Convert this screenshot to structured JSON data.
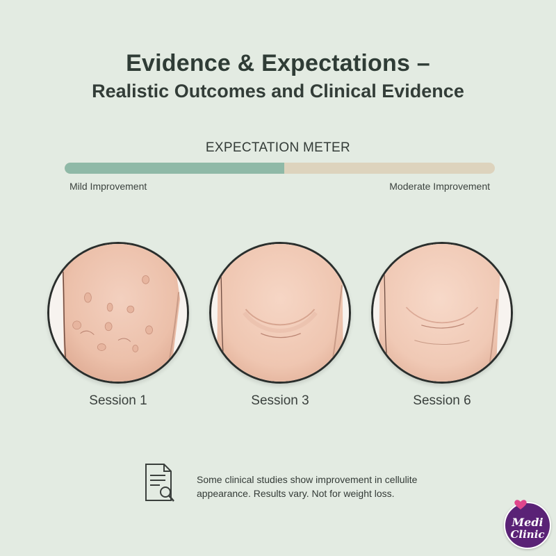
{
  "header": {
    "title": "Evidence & Expectations –",
    "subtitle": "Realistic Outcomes and Clinical Evidence"
  },
  "meter": {
    "label": "EXPECTATION METER",
    "left_label": "Mild Improvement",
    "right_label": "Moderate Improvement",
    "level_fraction": 0.51,
    "fill_color": "#8fb9a7",
    "track_color": "#ddd3bd"
  },
  "sessions": [
    {
      "label": "Session 1"
    },
    {
      "label": "Session 3"
    },
    {
      "label": "Session 6"
    }
  ],
  "disclaimer": {
    "icon": "document-search-icon",
    "line1": "Some clinical studies show improvement in cellulite",
    "line2": "appearance. Results vary. Not for weight loss."
  },
  "logo": {
    "line1": "Medi",
    "line2": "Clinic",
    "color": "#5a2276",
    "accent": "#e0468c"
  }
}
